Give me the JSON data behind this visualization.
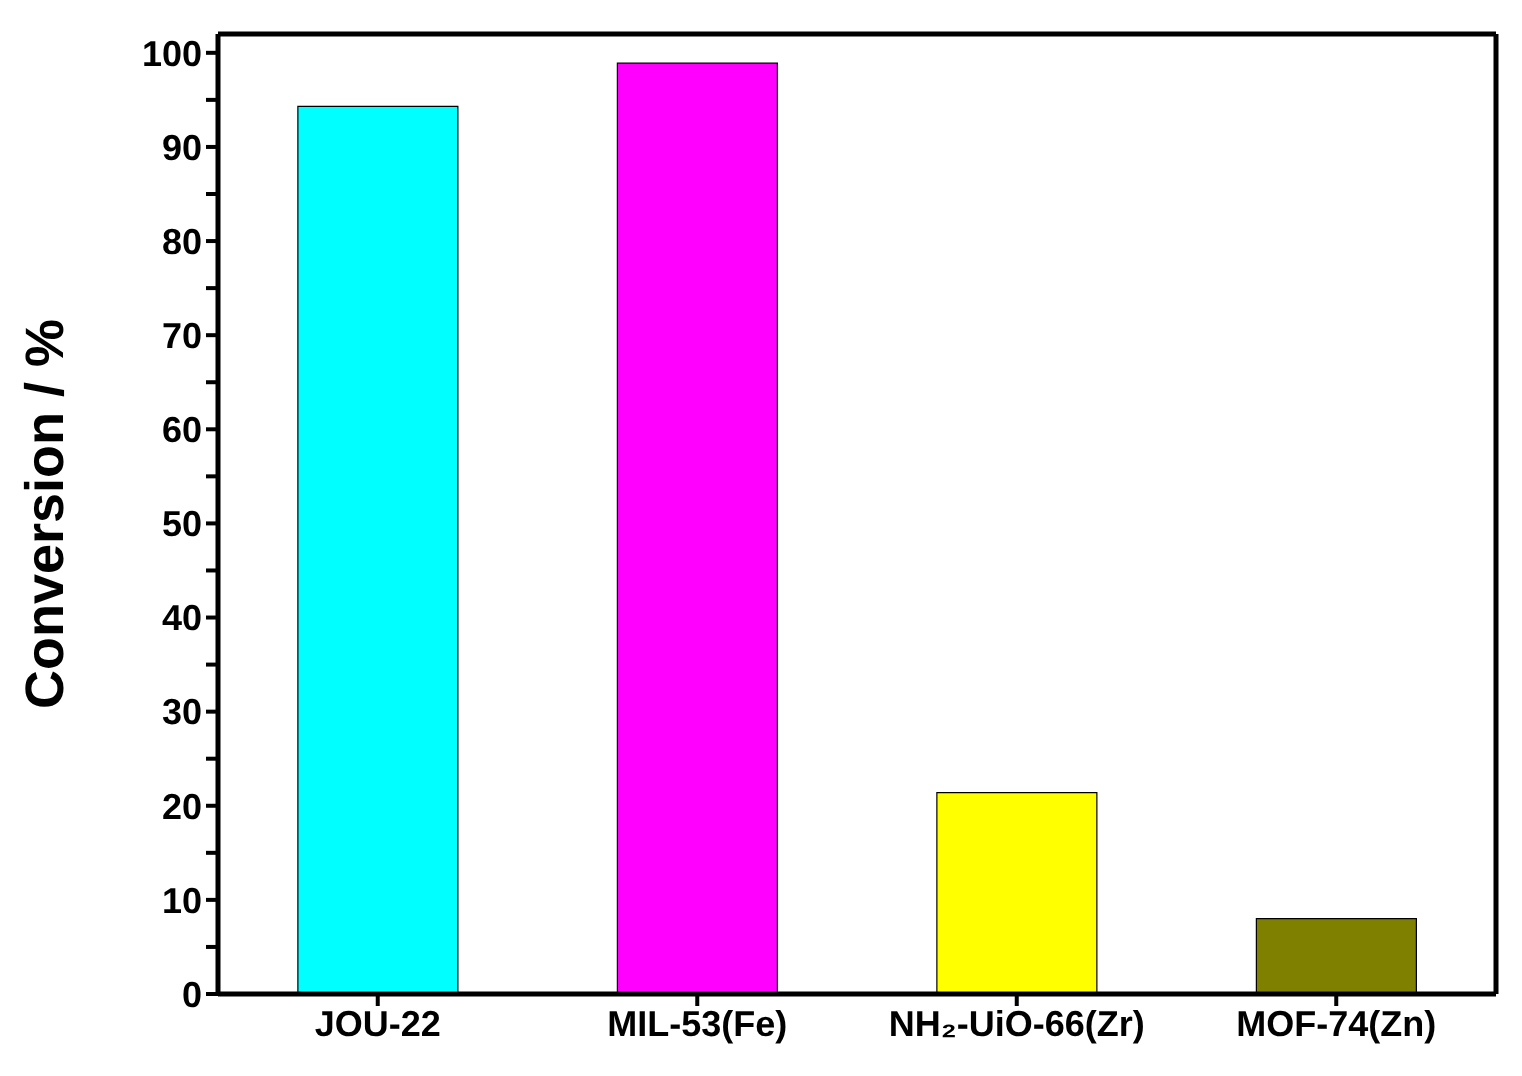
{
  "chart_data": {
    "type": "bar",
    "ylabel": "Conversion / %",
    "categories": [
      "JOU-22",
      "MIL-53(Fe)",
      "NH₂-UiO-66(Zr)",
      "MOF-74(Zn)"
    ],
    "values": [
      94.3,
      98.9,
      21.4,
      8.0
    ],
    "colors": [
      "#00ffff",
      "#ff00ff",
      "#ffff00",
      "#808000"
    ],
    "ylim": [
      0,
      102
    ],
    "yticks": [
      0,
      {
        "value": 5,
        "label": null
      },
      10,
      {
        "value": 15,
        "label": null
      },
      20,
      {
        "value": 25,
        "label": null
      },
      30,
      {
        "value": 35,
        "label": null
      },
      40,
      {
        "value": 45,
        "label": null
      },
      50,
      {
        "value": 55,
        "label": null
      },
      60,
      {
        "value": 65,
        "label": null
      },
      70,
      {
        "value": 75,
        "label": null
      },
      80,
      {
        "value": 85,
        "label": null
      },
      90,
      {
        "value": 95,
        "label": null
      },
      100
    ],
    "grid": false,
    "legend": false
  }
}
